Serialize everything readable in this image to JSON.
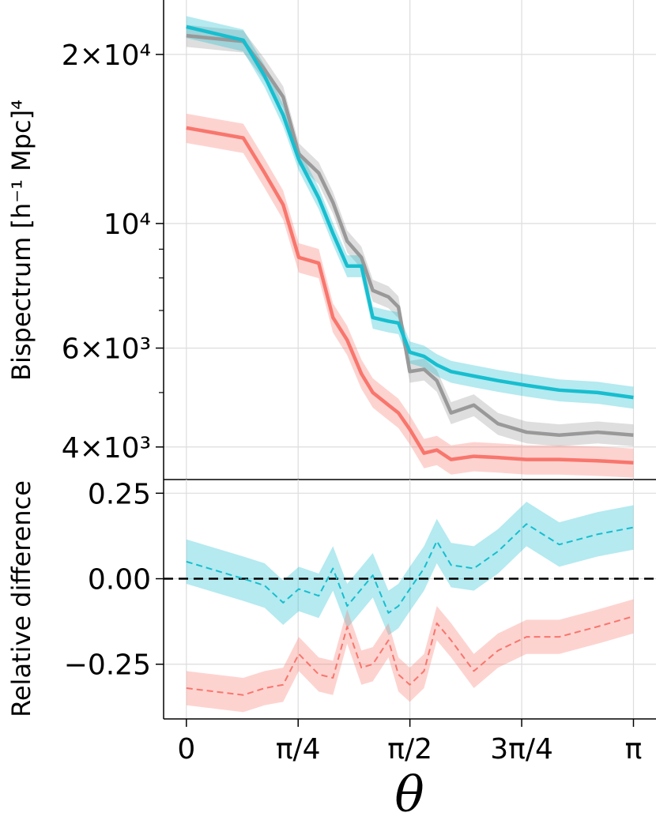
{
  "chart_data": [
    {
      "type": "line",
      "panel": "top",
      "ylabel": "Bispectrum [h⁻¹ Mpc]⁴",
      "yscale": "log",
      "ylim": [
        3500,
        25000
      ],
      "xlim": [
        -0.16,
        3.3
      ],
      "yticks": [
        {
          "value": 4000,
          "label": "4×10³"
        },
        {
          "value": 6000,
          "label": "6×10³"
        },
        {
          "value": 10000,
          "label": "10⁴"
        },
        {
          "value": 20000,
          "label": "2×10⁴"
        }
      ],
      "grid": true,
      "x": [
        0,
        0.4,
        0.55,
        0.68,
        0.79,
        0.93,
        1.03,
        1.13,
        1.23,
        1.31,
        1.42,
        1.49,
        1.57,
        1.67,
        1.76,
        1.86,
        2.02,
        2.19,
        2.39,
        2.62,
        2.89,
        3.1416
      ],
      "series": [
        {
          "color": "#999999",
          "values": [
            21600,
            21100,
            18800,
            16800,
            13300,
            12300,
            10900,
            9300,
            8700,
            7600,
            7400,
            7100,
            5450,
            5500,
            5250,
            4600,
            4750,
            4400,
            4250,
            4200,
            4250,
            4200
          ],
          "err": 0.045
        },
        {
          "color": "#17becf",
          "values": [
            22400,
            21200,
            18300,
            15600,
            13000,
            11100,
            9600,
            8400,
            8400,
            6800,
            6700,
            6650,
            5900,
            5800,
            5600,
            5450,
            5350,
            5250,
            5150,
            5050,
            5000,
            4900
          ],
          "err": 0.045
        },
        {
          "color": "#f8766d",
          "values": [
            14800,
            14200,
            12300,
            10800,
            8700,
            8500,
            6800,
            6200,
            5400,
            5000,
            4750,
            4600,
            4300,
            3900,
            3950,
            3800,
            3850,
            3830,
            3800,
            3800,
            3780,
            3750
          ],
          "err": 0.06
        }
      ]
    },
    {
      "type": "line",
      "panel": "bottom",
      "ylabel": "Relative difference",
      "ylim": [
        -0.41,
        0.29
      ],
      "xlim": [
        -0.16,
        3.3
      ],
      "yticks": [
        {
          "value": 0.25,
          "label": "0.25"
        },
        {
          "value": 0.0,
          "label": "0.00"
        },
        {
          "value": -0.25,
          "label": "−0.25"
        }
      ],
      "xticks": [
        {
          "value": 0,
          "label": "0"
        },
        {
          "value": 0.7854,
          "label": "π/4"
        },
        {
          "value": 1.5708,
          "label": "π/2"
        },
        {
          "value": 2.3562,
          "label": "3π/4"
        },
        {
          "value": 3.1416,
          "label": "π"
        }
      ],
      "xlabel": "θ",
      "reference_line": 0,
      "grid": true,
      "x": [
        0,
        0.4,
        0.55,
        0.68,
        0.79,
        0.93,
        1.03,
        1.13,
        1.23,
        1.31,
        1.42,
        1.49,
        1.57,
        1.67,
        1.76,
        1.86,
        2.02,
        2.19,
        2.39,
        2.62,
        2.89,
        3.1416
      ],
      "series": [
        {
          "color": "#17becf",
          "values": [
            0.05,
            0.0,
            -0.02,
            -0.07,
            -0.03,
            -0.05,
            0.03,
            -0.08,
            -0.03,
            0.01,
            -0.1,
            -0.08,
            -0.03,
            0.03,
            0.11,
            0.04,
            0.03,
            0.08,
            0.16,
            0.1,
            0.13,
            0.15
          ],
          "err": 0.065
        },
        {
          "color": "#f8766d",
          "values": [
            -0.32,
            -0.34,
            -0.32,
            -0.31,
            -0.22,
            -0.28,
            -0.29,
            -0.14,
            -0.26,
            -0.25,
            -0.18,
            -0.28,
            -0.31,
            -0.27,
            -0.13,
            -0.18,
            -0.27,
            -0.21,
            -0.17,
            -0.17,
            -0.14,
            -0.11
          ],
          "err": 0.05
        }
      ]
    }
  ]
}
